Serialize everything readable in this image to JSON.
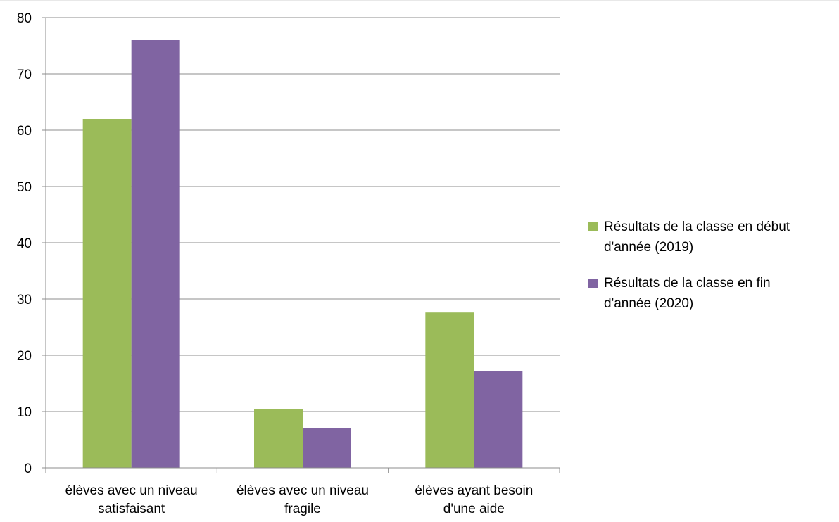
{
  "chart_data": {
    "type": "bar",
    "categories": [
      [
        "élèves avec un niveau",
        "satisfaisant"
      ],
      [
        "élèves avec un niveau",
        "fragile"
      ],
      [
        "élèves ayant besoin",
        "d'une aide"
      ]
    ],
    "series": [
      {
        "name": [
          "Résultats de la classe en début",
          "d'année (2019)"
        ],
        "color": "#9BBB59",
        "values": [
          62,
          10.4,
          27.6
        ]
      },
      {
        "name": [
          "Résultats de la classe en fin",
          "d'année (2020)"
        ],
        "color": "#8064A2",
        "values": [
          76,
          7,
          17.2
        ]
      }
    ],
    "ylim": [
      0,
      80
    ],
    "yticks": [
      0,
      10,
      20,
      30,
      40,
      50,
      60,
      70,
      80
    ],
    "grid": true,
    "legend_position": "right"
  }
}
